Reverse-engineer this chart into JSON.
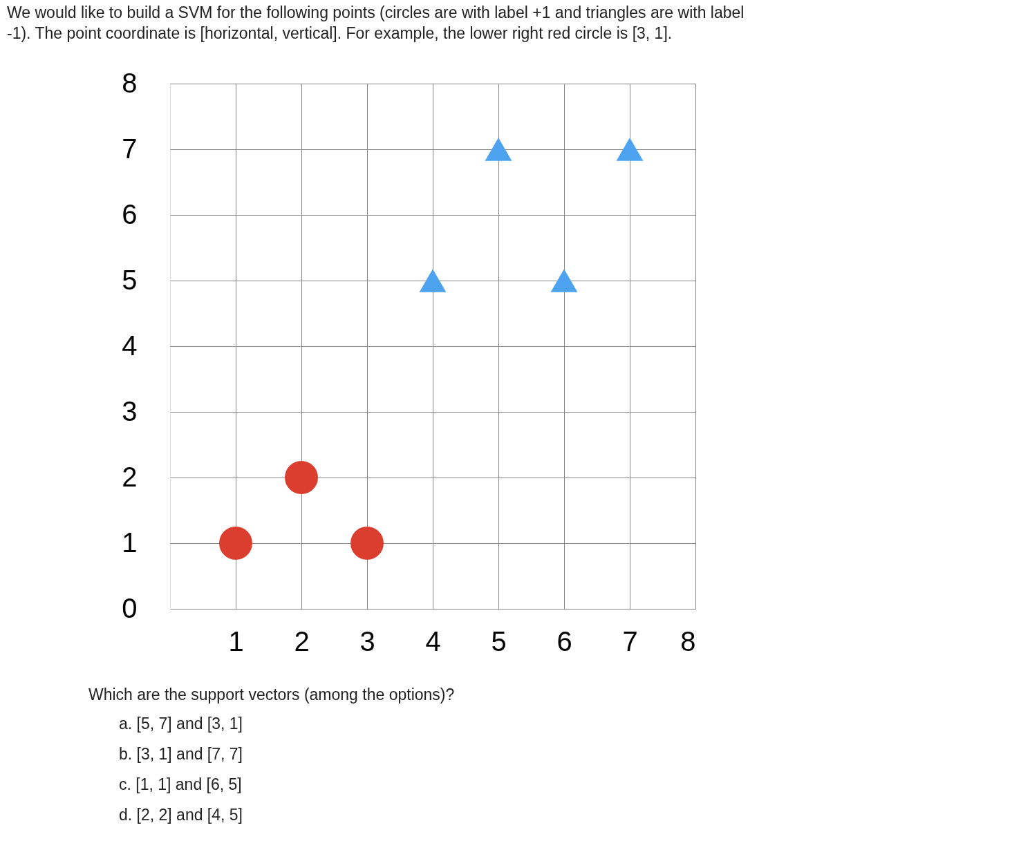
{
  "chart_data": {
    "type": "scatter",
    "title": "We would like to build a SVM for the following points (circles are with label +1 and triangles are with label -1). The point coordinate is [horizontal, vertical]. For example, the lower right red circle is [3, 1].",
    "xlim": [
      0,
      8
    ],
    "ylim": [
      0,
      8
    ],
    "xticks": [
      1,
      2,
      3,
      4,
      5,
      6,
      7,
      8
    ],
    "yticks": [
      0,
      1,
      2,
      3,
      4,
      5,
      6,
      7,
      8
    ],
    "grid": true,
    "series": [
      {
        "color": "#db3e2e",
        "marker": "circle",
        "x": [
          1,
          2,
          3
        ],
        "values": [
          1,
          2,
          1
        ]
      },
      {
        "color": "#4da3f0",
        "marker": "triangle",
        "x": [
          5,
          7,
          4,
          6
        ],
        "values": [
          7,
          7,
          5,
          5
        ]
      }
    ],
    "annotations": [
      "Which are the support vectors (among the options)?",
      "a. [5, 7] and [3, 1]",
      "b. [3, 1] and [7, 7]",
      "c. [1, 1] and [6, 5]",
      "d. [2, 2] and [4, 5]"
    ]
  }
}
